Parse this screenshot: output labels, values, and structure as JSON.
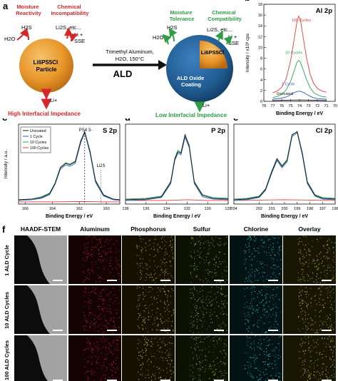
{
  "panel_a": {
    "letter": "a",
    "left": {
      "moisture_reactivity": "Moisture\nReactivity",
      "chemical_incompatibility": "Chemical\nIncompatibility",
      "h2s": "H2S",
      "h2o": "H2O",
      "li2s_etc": "Li2S, etc...",
      "li_sse": "Li +\nSSE",
      "particle": "Li6PS5Cl\nParticle",
      "li_plus": "Li+",
      "impedance": "High Interfacial Impedance"
    },
    "arrow": {
      "reagent": "Trimethyl Aluminum,",
      "conditions": "H2O, 150°C",
      "ald": "ALD"
    },
    "right": {
      "moisture_tolerance": "Moisture\nTolerance",
      "chemical_compatibility": "Chemical\nCompatibility",
      "h2s": "H2S",
      "h2o": "H2O",
      "li2s_etc": "Li2S, etc...",
      "li_sse": "Li +\nSSE",
      "core": "Li6PS5Cl",
      "coating": "ALD Oxide\nCoating",
      "li_plus": "Li+",
      "impedance": "Low Interfacial Impedance"
    }
  },
  "colors": {
    "red": "#d62828",
    "green": "#2e9e44",
    "particle_orange": "#e8962a",
    "coating_blue": "#1f5a8f",
    "uncoated": "#1a1a1a",
    "cycle1": "#2f5fbf",
    "cycle10": "#2aa45a",
    "cycle100": "#e23b3b",
    "teal": "#2b8c8c"
  },
  "chart_data": [
    {
      "panel": "b",
      "type": "line",
      "title": "Al 2p",
      "xlabel": "Binding Energy / eV",
      "ylabel": "Intensity / x10³ cps",
      "xlim": [
        78,
        70
      ],
      "ylim": [
        0,
        18
      ],
      "xticks": [
        78,
        77,
        76,
        75,
        74,
        73,
        72,
        71,
        70
      ],
      "yticks": [
        0,
        2,
        4,
        6,
        8,
        10,
        12,
        14,
        16,
        18
      ],
      "annotations": [
        "100 Cycles",
        "10 Cycles",
        "1 Cycle",
        "Uncoated"
      ],
      "series": [
        {
          "name": "100 Cycles",
          "x": [
            77,
            76.5,
            76,
            75.5,
            75,
            74.6,
            74.3,
            74.1,
            73.9,
            73.6,
            73.2,
            72.8,
            72.4,
            72,
            71.5,
            71
          ],
          "y": [
            1.6,
            1.9,
            2.6,
            4.2,
            7.5,
            11.5,
            14.6,
            15.8,
            15.2,
            12,
            8,
            5,
            3.3,
            2.4,
            1.9,
            1.7
          ]
        },
        {
          "name": "10 Cycles",
          "x": [
            77,
            76.5,
            76,
            75.5,
            75,
            74.6,
            74.3,
            74.1,
            73.9,
            73.6,
            73.2,
            72.8,
            72.4,
            72,
            71.5,
            71
          ],
          "y": [
            0.7,
            0.9,
            1.3,
            2.1,
            3.7,
            5.6,
            7.2,
            7.6,
            7.3,
            5.9,
            4,
            2.5,
            1.6,
            1.2,
            0.9,
            0.8
          ]
        },
        {
          "name": "1 Cycle",
          "x": [
            77,
            76,
            75.5,
            75,
            74.5,
            74,
            73.5,
            73,
            72.5,
            72,
            71
          ],
          "y": [
            0.4,
            0.6,
            0.8,
            1.2,
            1.7,
            1.9,
            1.6,
            1.1,
            0.7,
            0.5,
            0.4
          ]
        },
        {
          "name": "Uncoated",
          "x": [
            77,
            76,
            75,
            74,
            73,
            72,
            71
          ],
          "y": [
            0.15,
            0.18,
            0.22,
            0.25,
            0.22,
            0.18,
            0.15
          ]
        }
      ]
    },
    {
      "panel": "c",
      "type": "line",
      "title": "S 2p",
      "xlabel": "Binding Energy / eV",
      "ylabel": "Intensity / a.u.",
      "xlim": [
        166.5,
        159
      ],
      "xticks": [
        166,
        164,
        162,
        160
      ],
      "legend": [
        "Uncoated",
        "1 Cycle",
        "10 Cycles",
        "100 Cycles"
      ],
      "annotations": [
        "PS4 3-",
        "Li2S"
      ],
      "series": [
        {
          "name": "Uncoated",
          "x": [
            166.5,
            165.5,
            164.8,
            164.2,
            163.8,
            163.4,
            163.0,
            162.7,
            162.3,
            161.9,
            161.6,
            161.2,
            160.8,
            160.2,
            159.5,
            159
          ],
          "y": [
            0.06,
            0.07,
            0.09,
            0.14,
            0.28,
            0.5,
            0.56,
            0.54,
            0.58,
            0.86,
            1.0,
            0.72,
            0.32,
            0.12,
            0.07,
            0.06
          ]
        },
        {
          "name": "1 Cycle",
          "x": [
            166.5,
            165.5,
            164.8,
            164.2,
            163.8,
            163.4,
            163.0,
            162.7,
            162.3,
            161.9,
            161.6,
            161.2,
            160.8,
            160.2,
            159.5,
            159
          ],
          "y": [
            0.05,
            0.06,
            0.08,
            0.13,
            0.27,
            0.48,
            0.54,
            0.52,
            0.56,
            0.84,
            0.98,
            0.7,
            0.3,
            0.11,
            0.06,
            0.05
          ]
        },
        {
          "name": "10 Cycles",
          "x": [
            166.5,
            165.5,
            164.8,
            164.2,
            163.8,
            163.4,
            163.0,
            162.7,
            162.3,
            161.9,
            161.6,
            161.2,
            160.8,
            160.2,
            159.5,
            159
          ],
          "y": [
            0.06,
            0.07,
            0.1,
            0.15,
            0.29,
            0.51,
            0.57,
            0.55,
            0.59,
            0.87,
            0.99,
            0.73,
            0.33,
            0.13,
            0.07,
            0.06
          ]
        },
        {
          "name": "100 Cycles",
          "x": [
            166.5,
            164,
            162,
            160,
            159
          ],
          "y": [
            0.03,
            0.03,
            0.035,
            0.03,
            0.03
          ]
        }
      ]
    },
    {
      "panel": "d",
      "type": "line",
      "title": "P 2p",
      "xlabel": "Binding Energy / eV",
      "xlim": [
        138,
        128
      ],
      "xticks": [
        138,
        136,
        134,
        132,
        130,
        128
      ],
      "series": [
        {
          "name": "Uncoated",
          "x": [
            138,
            136,
            134.5,
            133.6,
            133.2,
            132.9,
            132.6,
            132.2,
            131.8,
            131.3,
            130.5,
            129.5,
            128
          ],
          "y": [
            0.06,
            0.07,
            0.1,
            0.3,
            0.62,
            0.72,
            0.7,
            0.95,
            0.8,
            0.3,
            0.12,
            0.08,
            0.07
          ]
        },
        {
          "name": "1 Cycle",
          "x": [
            138,
            136,
            134.5,
            133.6,
            133.2,
            132.9,
            132.6,
            132.2,
            131.8,
            131.3,
            130.5,
            129.5,
            128
          ],
          "y": [
            0.05,
            0.06,
            0.09,
            0.28,
            0.6,
            0.7,
            0.68,
            0.92,
            0.78,
            0.28,
            0.1,
            0.07,
            0.06
          ]
        },
        {
          "name": "10 Cycles",
          "x": [
            138,
            136,
            134.5,
            133.6,
            133.2,
            132.9,
            132.6,
            132.2,
            131.8,
            131.3,
            130.5,
            129.5,
            128
          ],
          "y": [
            0.07,
            0.08,
            0.11,
            0.31,
            0.63,
            0.74,
            0.71,
            0.96,
            0.81,
            0.31,
            0.13,
            0.09,
            0.08
          ]
        },
        {
          "name": "100 Cycles",
          "x": [
            138,
            134,
            132,
            130,
            128
          ],
          "y": [
            0.05,
            0.05,
            0.06,
            0.05,
            0.05
          ]
        }
      ]
    },
    {
      "panel": "e",
      "type": "line",
      "title": "Cl 2p",
      "xlabel": "Binding Energy / eV",
      "xlim": [
        204,
        196
      ],
      "xticks": [
        204,
        202,
        201,
        200,
        199,
        198,
        197,
        196
      ],
      "series": [
        {
          "name": "Uncoated",
          "x": [
            204,
            203,
            202,
            201.5,
            201,
            200.6,
            200.2,
            199.8,
            199.4,
            199.0,
            198.6,
            198.2,
            197.6,
            197,
            196
          ],
          "y": [
            0.06,
            0.07,
            0.1,
            0.2,
            0.45,
            0.62,
            0.52,
            0.6,
            0.95,
            1.0,
            0.7,
            0.3,
            0.12,
            0.08,
            0.07
          ]
        },
        {
          "name": "1 Cycle",
          "x": [
            204,
            203,
            202,
            201.5,
            201,
            200.6,
            200.2,
            199.8,
            199.4,
            199.0,
            198.6,
            198.2,
            197.6,
            197,
            196
          ],
          "y": [
            0.05,
            0.06,
            0.09,
            0.19,
            0.43,
            0.6,
            0.5,
            0.58,
            0.93,
            0.98,
            0.68,
            0.28,
            0.11,
            0.07,
            0.06
          ]
        },
        {
          "name": "10 Cycles",
          "x": [
            204,
            203,
            202,
            201.5,
            201,
            200.6,
            200.2,
            199.8,
            199.4,
            199.0,
            198.6,
            198.2,
            197.6,
            197,
            196
          ],
          "y": [
            0.07,
            0.08,
            0.11,
            0.21,
            0.46,
            0.63,
            0.53,
            0.61,
            0.96,
            0.99,
            0.71,
            0.31,
            0.13,
            0.09,
            0.08
          ]
        },
        {
          "name": "100 Cycles",
          "x": [
            204,
            200,
            196
          ],
          "y": [
            0.05,
            0.06,
            0.05
          ]
        }
      ]
    }
  ],
  "panel_f": {
    "letter": "f",
    "columns": [
      "HAADF-STEM",
      "Aluminum",
      "Phosphorus",
      "Sulfur",
      "Chlorine",
      "Overlay"
    ],
    "rows": [
      "1 ALD Cycle",
      "10 ALD Cycles",
      "100 ALD Cycles"
    ]
  }
}
